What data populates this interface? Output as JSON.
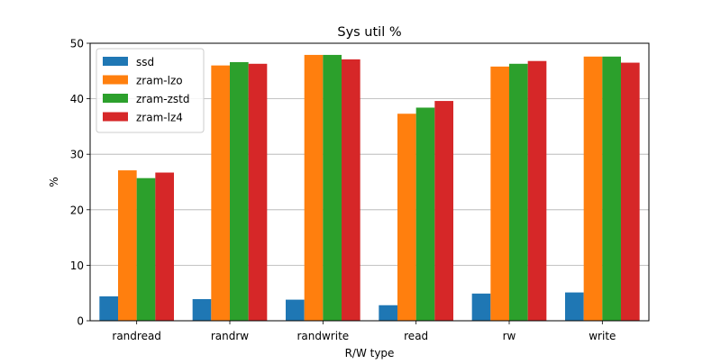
{
  "chart_data": {
    "type": "bar",
    "title": "Sys util %",
    "xlabel": "R/W type",
    "ylabel": "%",
    "categories": [
      "randread",
      "randrw",
      "randwrite",
      "read",
      "rw",
      "write"
    ],
    "ylim": [
      0,
      50
    ],
    "yticks": [
      0,
      10,
      20,
      30,
      40,
      50
    ],
    "grid": "horizontal",
    "legend_position": "top-left",
    "series": [
      {
        "name": "ssd",
        "color": "#1f77b4",
        "values": [
          4.4,
          3.9,
          3.8,
          2.8,
          4.9,
          5.1
        ]
      },
      {
        "name": "zram-lzo",
        "color": "#ff7f0e",
        "values": [
          27.1,
          46.0,
          47.9,
          37.3,
          45.8,
          47.6
        ]
      },
      {
        "name": "zram-zstd",
        "color": "#2ca02c",
        "values": [
          25.7,
          46.6,
          47.9,
          38.4,
          46.3,
          47.6
        ]
      },
      {
        "name": "zram-lz4",
        "color": "#d62728",
        "values": [
          26.7,
          46.3,
          47.1,
          39.6,
          46.8,
          46.5
        ]
      }
    ]
  }
}
